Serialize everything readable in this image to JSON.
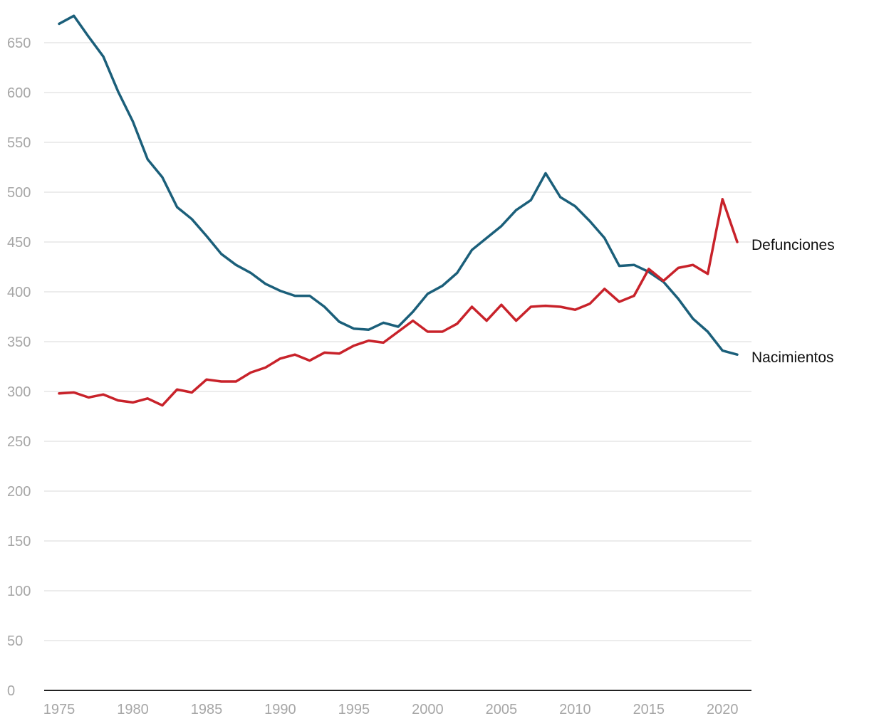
{
  "chart_data": {
    "type": "line",
    "title": "",
    "xlabel": "",
    "ylabel": "",
    "xlim": [
      1975,
      2021
    ],
    "ylim": [
      0,
      650
    ],
    "grid": true,
    "y_ticks": [
      "0",
      "50",
      "100",
      "150",
      "200",
      "250",
      "300",
      "350",
      "400",
      "450",
      "500",
      "550",
      "600",
      "650"
    ],
    "x_ticks": [
      "1975",
      "1980",
      "1985",
      "1990",
      "1995",
      "2000",
      "2005",
      "2010",
      "2015",
      "2020"
    ],
    "x": [
      1975,
      1976,
      1977,
      1978,
      1979,
      1980,
      1981,
      1982,
      1983,
      1984,
      1985,
      1986,
      1987,
      1988,
      1989,
      1990,
      1991,
      1992,
      1993,
      1994,
      1995,
      1996,
      1997,
      1998,
      1999,
      2000,
      2001,
      2002,
      2003,
      2004,
      2005,
      2006,
      2007,
      2008,
      2009,
      2010,
      2011,
      2012,
      2013,
      2014,
      2015,
      2016,
      2017,
      2018,
      2019,
      2020,
      2021
    ],
    "series": [
      {
        "name": "Nacimientos",
        "color": "#1b5f7a",
        "values": [
          669,
          677,
          656,
          636,
          601,
          571,
          533,
          515,
          485,
          473,
          456,
          438,
          427,
          419,
          408,
          401,
          396,
          396,
          385,
          370,
          363,
          362,
          369,
          365,
          380,
          398,
          406,
          419,
          442,
          454,
          466,
          482,
          492,
          519,
          495,
          486,
          471,
          454,
          426,
          427,
          420,
          410,
          393,
          373,
          360,
          341,
          337
        ]
      },
      {
        "name": "Defunciones",
        "color": "#c8222a",
        "values": [
          298,
          299,
          294,
          297,
          291,
          289,
          293,
          286,
          302,
          299,
          312,
          310,
          310,
          319,
          324,
          333,
          337,
          331,
          339,
          338,
          346,
          351,
          349,
          360,
          371,
          360,
          360,
          368,
          385,
          371,
          387,
          371,
          385,
          386,
          385,
          382,
          388,
          403,
          390,
          396,
          423,
          411,
          424,
          427,
          418,
          493,
          450
        ]
      }
    ]
  }
}
